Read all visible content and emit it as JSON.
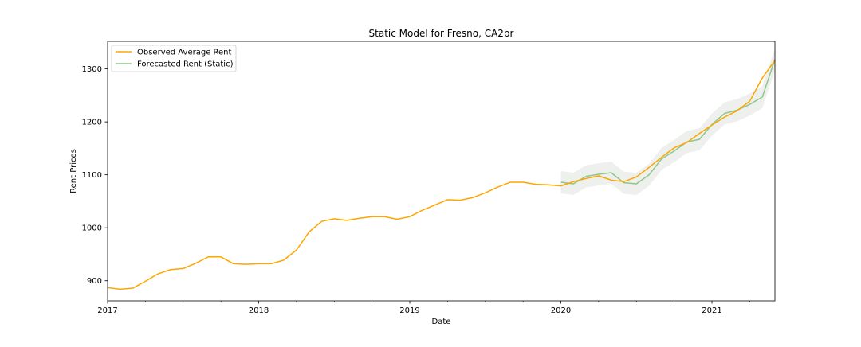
{
  "chart_data": {
    "type": "line",
    "title": "Static Model for Fresno, CA2br",
    "xlabel": "Date",
    "ylabel": "Rent Prices",
    "xlim": [
      "2017-01",
      "2021-06"
    ],
    "ylim": [
      862,
      1352
    ],
    "xticks": [
      {
        "label": "2017",
        "date": "2017-01"
      },
      {
        "label": "2018",
        "date": "2018-01"
      },
      {
        "label": "2019",
        "date": "2019-01"
      },
      {
        "label": "2020",
        "date": "2020-01"
      },
      {
        "label": "2021",
        "date": "2021-01"
      }
    ],
    "yticks": [
      900,
      1000,
      1100,
      1200,
      1300
    ],
    "legend_position": "top-left",
    "grid": false,
    "series": [
      {
        "name": "Observed Average Rent",
        "color": "#ffa500",
        "x": [
          "2017-01",
          "2017-02",
          "2017-03",
          "2017-04",
          "2017-05",
          "2017-06",
          "2017-07",
          "2017-08",
          "2017-09",
          "2017-10",
          "2017-11",
          "2017-12",
          "2018-01",
          "2018-02",
          "2018-03",
          "2018-04",
          "2018-05",
          "2018-06",
          "2018-07",
          "2018-08",
          "2018-09",
          "2018-10",
          "2018-11",
          "2018-12",
          "2019-01",
          "2019-02",
          "2019-03",
          "2019-04",
          "2019-05",
          "2019-06",
          "2019-07",
          "2019-08",
          "2019-09",
          "2019-10",
          "2019-11",
          "2019-12",
          "2020-01",
          "2020-02",
          "2020-03",
          "2020-04",
          "2020-05",
          "2020-06",
          "2020-07",
          "2020-08",
          "2020-09",
          "2020-10",
          "2020-11",
          "2020-12",
          "2021-01",
          "2021-02",
          "2021-03",
          "2021-04",
          "2021-05",
          "2021-06"
        ],
        "y": [
          887,
          884,
          886,
          899,
          913,
          921,
          923,
          933,
          945,
          945,
          932,
          931,
          932,
          932,
          939,
          958,
          992,
          1012,
          1017,
          1014,
          1018,
          1021,
          1021,
          1016,
          1021,
          1033,
          1043,
          1053,
          1052,
          1057,
          1066,
          1077,
          1086,
          1086,
          1082,
          1081,
          1079,
          1087,
          1093,
          1098,
          1090,
          1087,
          1096,
          1114,
          1133,
          1151,
          1161,
          1178,
          1194,
          1209,
          1221,
          1239,
          1283,
          1316
        ]
      },
      {
        "name": "Forecasted Rent (Static)",
        "color": "#8fc68c",
        "x": [
          "2020-01",
          "2020-02",
          "2020-03",
          "2020-04",
          "2020-05",
          "2020-06",
          "2020-07",
          "2020-08",
          "2020-09",
          "2020-10",
          "2020-11",
          "2020-12",
          "2021-01",
          "2021-02",
          "2021-03",
          "2021-04",
          "2021-05",
          "2021-06"
        ],
        "y": [
          1086,
          1083,
          1097,
          1101,
          1104,
          1085,
          1083,
          1100,
          1130,
          1145,
          1162,
          1167,
          1195,
          1216,
          1222,
          1233,
          1247,
          1318
        ]
      }
    ],
    "confidence_band": {
      "color": "#c8ccc8",
      "x": [
        "2020-01",
        "2020-02",
        "2020-03",
        "2020-04",
        "2020-05",
        "2020-06",
        "2020-07",
        "2020-08",
        "2020-09",
        "2020-10",
        "2020-11",
        "2020-12",
        "2021-01",
        "2021-02",
        "2021-03",
        "2021-04",
        "2021-05",
        "2021-06"
      ],
      "lower": [
        1065,
        1062,
        1076,
        1080,
        1083,
        1064,
        1062,
        1079,
        1109,
        1124,
        1141,
        1146,
        1174,
        1195,
        1201,
        1212,
        1226,
        1297
      ],
      "upper": [
        1107,
        1104,
        1118,
        1122,
        1125,
        1106,
        1104,
        1121,
        1151,
        1166,
        1183,
        1188,
        1216,
        1237,
        1243,
        1254,
        1268,
        1339
      ]
    }
  }
}
